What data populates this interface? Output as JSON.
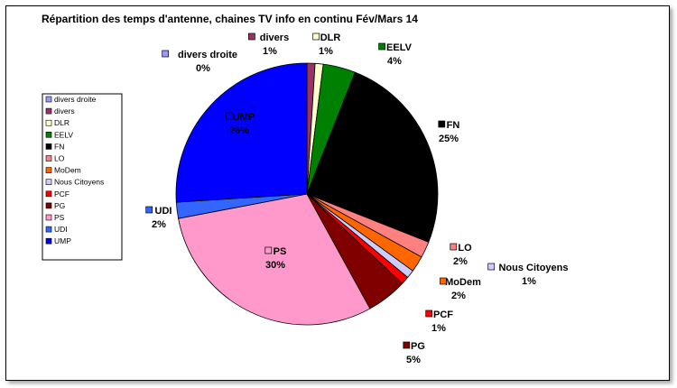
{
  "chart_data": {
    "type": "pie",
    "title": "Répartition des temps d'antenne, chaines TV info en continu Fév/Mars 14",
    "legend_position": "left",
    "slices": [
      {
        "name": "divers droite",
        "value": 0,
        "pct_label": "0%",
        "color": "#9999ff"
      },
      {
        "name": "divers",
        "value": 1,
        "pct_label": "1%",
        "color": "#993366"
      },
      {
        "name": "DLR",
        "value": 1,
        "pct_label": "1%",
        "color": "#ffffcc"
      },
      {
        "name": "EELV",
        "value": 4,
        "pct_label": "4%",
        "color": "#008000"
      },
      {
        "name": "FN",
        "value": 25,
        "pct_label": "25%",
        "color": "#000000"
      },
      {
        "name": "LO",
        "value": 2,
        "pct_label": "2%",
        "color": "#ff8080"
      },
      {
        "name": "MoDem",
        "value": 2,
        "pct_label": "2%",
        "color": "#ff6600"
      },
      {
        "name": "Nous Citoyens",
        "value": 1,
        "pct_label": "1%",
        "color": "#ccccff"
      },
      {
        "name": "PCF",
        "value": 1,
        "pct_label": "1%",
        "color": "#ff0000"
      },
      {
        "name": "PG",
        "value": 5,
        "pct_label": "5%",
        "color": "#800000"
      },
      {
        "name": "PS",
        "value": 30,
        "pct_label": "30%",
        "color": "#ff99cc"
      },
      {
        "name": "UDI",
        "value": 2,
        "pct_label": "2%",
        "color": "#3366ff"
      },
      {
        "name": "UMP",
        "value": 26,
        "pct_label": "26%",
        "color": "#0000ff"
      }
    ]
  }
}
